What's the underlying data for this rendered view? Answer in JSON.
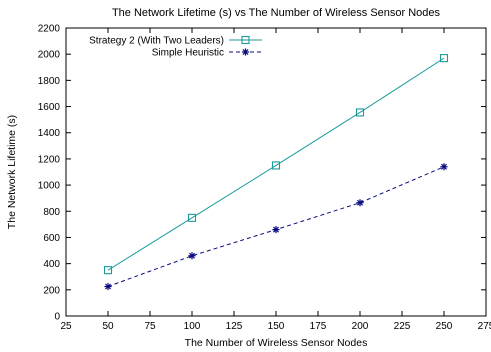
{
  "chart_data": {
    "type": "line",
    "title": "The Network Lifetime (s) vs The Number of Wireless Sensor Nodes",
    "xlabel": "The Number of Wireless Sensor Nodes",
    "ylabel": "The Network Lifetime (s)",
    "xlim": [
      25,
      275
    ],
    "ylim": [
      0,
      2200
    ],
    "xticks": [
      25,
      50,
      75,
      100,
      125,
      150,
      175,
      200,
      225,
      250,
      275
    ],
    "yticks": [
      0,
      200,
      400,
      600,
      800,
      1000,
      1200,
      1400,
      1600,
      1800,
      2000,
      2200
    ],
    "grid": false,
    "legend_position": "top-left",
    "x": [
      50,
      100,
      150,
      200,
      250
    ],
    "series": [
      {
        "name": "Strategy 2 (With Two Leaders)",
        "values": [
          350,
          750,
          1150,
          1555,
          1970
        ],
        "color": "#1a9a9a",
        "marker": "square",
        "line": "solid"
      },
      {
        "name": "Simple Heuristic",
        "values": [
          225,
          460,
          660,
          865,
          1140
        ],
        "color": "#0a0a80",
        "marker": "asterisk",
        "line": "dashed"
      }
    ]
  }
}
